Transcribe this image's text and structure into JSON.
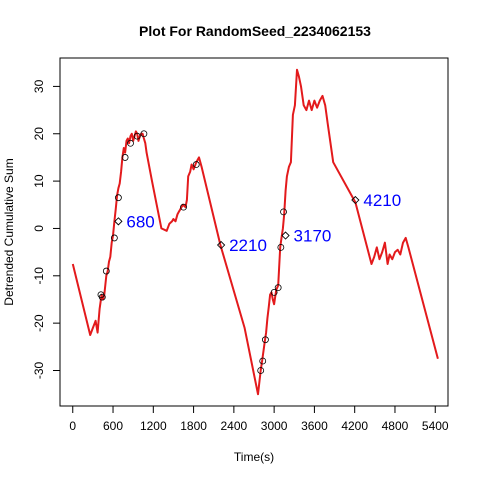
{
  "chart_data": {
    "type": "line",
    "title": "Plot For RandomSeed_2234062153",
    "xlabel": "Time(s)",
    "ylabel": "Detrended Cumulative Sum",
    "xlim": [
      -190,
      5590
    ],
    "ylim": [
      -37.5,
      36
    ],
    "xticks": [
      0,
      600,
      1200,
      1800,
      2400,
      3000,
      3600,
      4200,
      4800,
      5400
    ],
    "yticks": [
      -30,
      -20,
      -10,
      0,
      10,
      20,
      30
    ],
    "grid": false,
    "legend": "none",
    "colors": {
      "line": "#e31a1c",
      "label": "#0000ff",
      "marker": "#000000"
    },
    "series": [
      {
        "type": "line",
        "x": [
          0,
          260,
          300,
          340,
          370,
          400,
          430,
          450,
          470,
          500,
          520,
          540,
          560,
          580,
          600,
          620,
          640,
          660,
          680,
          700,
          720,
          740,
          760,
          780,
          800,
          820,
          840,
          860,
          880,
          900,
          920,
          940,
          960,
          980,
          1000,
          1020,
          1040,
          1060,
          1080,
          1100,
          1180,
          1250,
          1320,
          1400,
          1440,
          1480,
          1500,
          1530,
          1560,
          1580,
          1600,
          1640,
          1680,
          1700,
          1720,
          1750,
          1770,
          1800,
          1840,
          1880,
          1920,
          2200,
          2560,
          2760,
          2800,
          2820,
          2840,
          2860,
          2880,
          2900,
          2920,
          2940,
          2960,
          2980,
          3000,
          3030,
          3060,
          3090,
          3110,
          3130,
          3150,
          3170,
          3190,
          3220,
          3250,
          3280,
          3310,
          3340,
          3370,
          3400,
          3440,
          3480,
          3520,
          3560,
          3600,
          3640,
          3680,
          3720,
          3760,
          3800,
          3840,
          3880,
          4210,
          4450,
          4490,
          4530,
          4570,
          4610,
          4650,
          4690,
          4720,
          4760,
          4800,
          4840,
          4880,
          4920,
          4960,
          5000,
          5440
        ],
        "y": [
          -7.5,
          -22.5,
          -21,
          -19.5,
          -22,
          -17,
          -14,
          -15,
          -14,
          -10,
          -9,
          -7,
          -6,
          -3,
          -1.5,
          1.5,
          4,
          7,
          8.5,
          9.5,
          12,
          15,
          17,
          16,
          18.5,
          19,
          18,
          19.5,
          20,
          18.5,
          19.5,
          20.5,
          20,
          18.5,
          19.5,
          20,
          20,
          19,
          18,
          16,
          10,
          5,
          0,
          -0.5,
          1,
          1.5,
          2,
          1.5,
          3,
          3.5,
          4,
          5,
          4.5,
          6,
          11,
          12,
          13.5,
          12.5,
          14,
          15,
          13,
          -3.5,
          -21,
          -35,
          -30,
          -28,
          -26,
          -24,
          -22,
          -19,
          -16.5,
          -14,
          -13.5,
          -15,
          -16,
          -13,
          -12,
          -4,
          -2,
          0,
          3,
          8,
          11,
          13,
          14,
          24,
          26,
          33.5,
          32,
          30,
          26,
          25,
          27,
          25,
          27,
          25.5,
          27,
          28,
          26,
          22,
          18,
          14,
          5.5,
          -7.5,
          -6,
          -4,
          -6.5,
          -5,
          -3,
          -7.5,
          -5.5,
          -6.5,
          -5,
          -4.5,
          -5.5,
          -3,
          -2,
          -4,
          -27.5
        ]
      }
    ],
    "circle_markers": {
      "x": [
        420,
        440,
        500,
        620,
        680,
        780,
        860,
        960,
        1060,
        1650,
        1840,
        2800,
        2830,
        2870,
        3000,
        3060,
        3100,
        3140
      ],
      "y": [
        -14,
        -14.5,
        -9,
        -2,
        6.5,
        15,
        18,
        19.5,
        20,
        4.5,
        13.5,
        -30,
        -28,
        -23.5,
        -13.5,
        -12.5,
        -4,
        3.5
      ]
    },
    "annotations": [
      {
        "label": "680",
        "x": 680,
        "y": 1.5
      },
      {
        "label": "2210",
        "x": 2210,
        "y": -3.5
      },
      {
        "label": "3170",
        "x": 3170,
        "y": -1.5
      },
      {
        "label": "4210",
        "x": 4210,
        "y": 6
      }
    ]
  }
}
